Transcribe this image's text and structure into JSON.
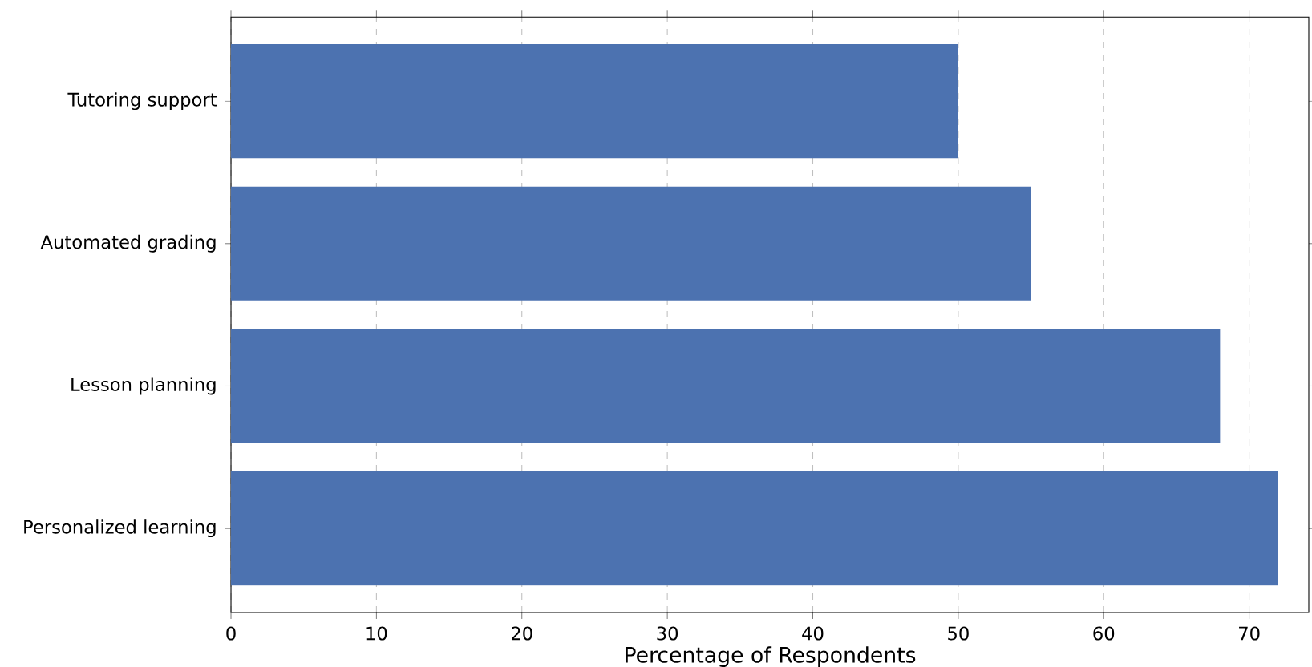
{
  "chart_data": {
    "type": "bar",
    "orientation": "horizontal",
    "categories": [
      "Tutoring support",
      "Automated grading",
      "Lesson planning",
      "Personalized learning"
    ],
    "values": [
      50,
      55,
      68,
      72
    ],
    "color": "#4c72b0",
    "xlabel": "Percentage of Respondents",
    "xlim": [
      0,
      74.1
    ],
    "xticks": [
      0,
      10,
      20,
      30,
      40,
      50,
      60,
      70
    ],
    "grid": "x"
  }
}
